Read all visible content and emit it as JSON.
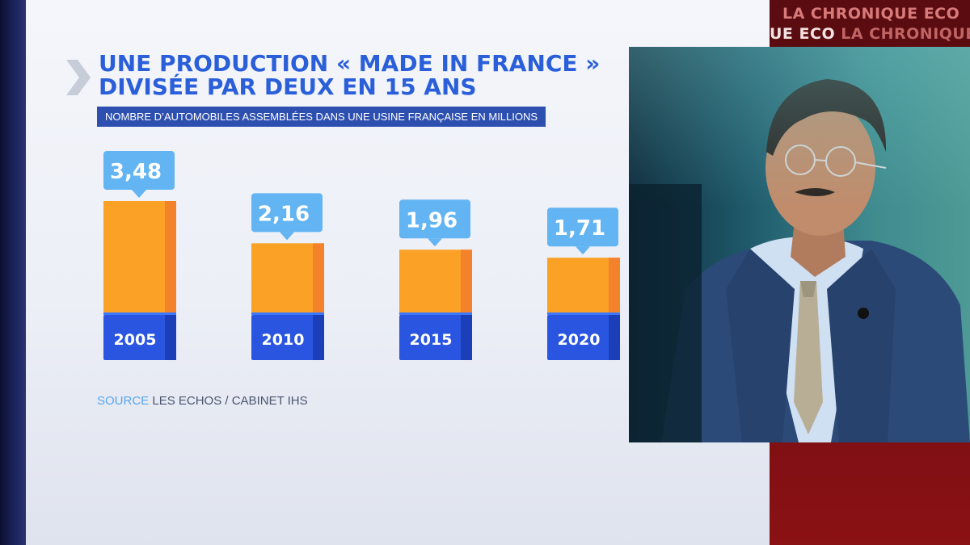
{
  "ticker": {
    "line1": "LA CHRONIQUE ECO",
    "line2_a": "UE ECO",
    "line2_b": "LA CHRONIQUE"
  },
  "headline": {
    "line1": "UNE PRODUCTION « MADE IN FRANCE »",
    "line2": "DIVISÉE PAR DEUX EN 15 ANS"
  },
  "subtitle": "NOMBRE D’AUTOMOBILES ASSEMBLÉES DANS UNE USINE FRANÇAISE EN MILLIONS",
  "source": {
    "label": "SOURCE",
    "text": "LES ECHOS / CABINET IHS"
  },
  "colors": {
    "bar_orange": "#fba125",
    "bar_orange_shade": "#f4822a",
    "bar_base": "#2a55e0",
    "bar_base_shade": "#1a3fb8",
    "label_bubble": "#62b4f2",
    "title": "#2a5fd9"
  },
  "chart_data": {
    "type": "bar",
    "title": "UNE PRODUCTION « MADE IN FRANCE » DIVISÉE PAR DEUX EN 15 ANS",
    "subtitle": "NOMBRE D’AUTOMOBILES ASSEMBLÉES DANS UNE USINE FRANÇAISE EN MILLIONS",
    "categories": [
      "2005",
      "2010",
      "2015",
      "2020"
    ],
    "values": [
      3.48,
      2.16,
      1.96,
      1.71
    ],
    "value_labels": [
      "3,48",
      "2,16",
      "1,96",
      "1,71"
    ],
    "unit": "millions",
    "xlabel": "",
    "ylabel": "",
    "grid": false,
    "legend": "none"
  }
}
